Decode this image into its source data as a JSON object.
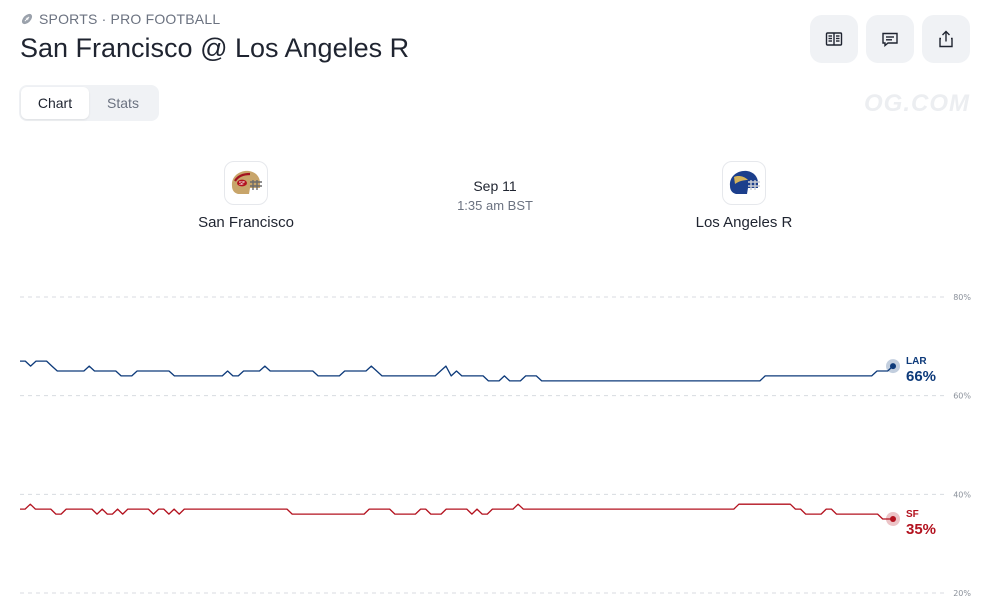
{
  "header": {
    "category": "SPORTS · PRO FOOTBALL",
    "title": "San Francisco @ Los Angeles R"
  },
  "tabs": [
    {
      "label": "Chart",
      "active": true
    },
    {
      "label": "Stats",
      "active": false
    }
  ],
  "watermark": "OG.COM",
  "actions": [
    "book-icon",
    "comment-icon",
    "share-icon"
  ],
  "matchup": {
    "home": {
      "name": "San Francisco",
      "color": "#b3121f"
    },
    "away": {
      "name": "Los Angeles R",
      "color": "#0d3a7a"
    },
    "date": "Sep 11",
    "time": "1:35 am BST"
  },
  "chart_data": {
    "type": "line",
    "ylim": [
      20,
      80
    ],
    "yticks": [
      "80%",
      "60%",
      "40%",
      "20%"
    ],
    "grid": true,
    "series": [
      {
        "name": "LAR",
        "label": "66%",
        "color": "#0d3a7a",
        "values": [
          67,
          67,
          66,
          67,
          67,
          67,
          66,
          65,
          65,
          65,
          65,
          65,
          65,
          66,
          65,
          65,
          65,
          65,
          65,
          64,
          64,
          64,
          65,
          65,
          65,
          65,
          65,
          65,
          65,
          64,
          64,
          64,
          64,
          64,
          64,
          64,
          64,
          64,
          64,
          65,
          64,
          64,
          65,
          65,
          65,
          65,
          66,
          65,
          65,
          65,
          65,
          65,
          65,
          65,
          65,
          65,
          64,
          64,
          64,
          64,
          64,
          65,
          65,
          65,
          65,
          65,
          66,
          65,
          64,
          64,
          64,
          64,
          64,
          64,
          64,
          64,
          64,
          64,
          64,
          65,
          66,
          64,
          65,
          64,
          64,
          64,
          64,
          64,
          63,
          63,
          63,
          64,
          63,
          63,
          63,
          64,
          64,
          64,
          63,
          63,
          63,
          63,
          63,
          63,
          63,
          63,
          63,
          63,
          63,
          63,
          63,
          63,
          63,
          63,
          63,
          63,
          63,
          63,
          63,
          63,
          63,
          63,
          63,
          63,
          63,
          63,
          63,
          63,
          63,
          63,
          63,
          63,
          63,
          63,
          63,
          63,
          63,
          63,
          63,
          63,
          64,
          64,
          64,
          64,
          64,
          64,
          64,
          64,
          64,
          64,
          64,
          64,
          64,
          64,
          64,
          64,
          64,
          64,
          64,
          64,
          64,
          65,
          65,
          65,
          66
        ]
      },
      {
        "name": "SF",
        "label": "35%",
        "color": "#b3121f",
        "values": [
          37,
          37,
          38,
          37,
          37,
          37,
          37,
          36,
          36,
          37,
          37,
          37,
          37,
          37,
          37,
          36,
          37,
          36,
          36,
          37,
          36,
          37,
          37,
          37,
          37,
          37,
          36,
          37,
          37,
          36,
          37,
          36,
          37,
          37,
          37,
          37,
          37,
          37,
          37,
          37,
          37,
          37,
          37,
          37,
          37,
          37,
          37,
          37,
          37,
          37,
          37,
          37,
          37,
          36,
          36,
          36,
          36,
          36,
          36,
          36,
          36,
          36,
          36,
          36,
          36,
          36,
          36,
          36,
          37,
          37,
          37,
          37,
          37,
          36,
          36,
          36,
          36,
          36,
          37,
          37,
          36,
          36,
          36,
          37,
          37,
          37,
          37,
          37,
          36,
          37,
          36,
          36,
          37,
          37,
          37,
          37,
          37,
          38,
          37,
          37,
          37,
          37,
          37,
          37,
          37,
          37,
          37,
          37,
          37,
          37,
          37,
          37,
          37,
          37,
          37,
          37,
          37,
          37,
          37,
          37,
          37,
          37,
          37,
          37,
          37,
          37,
          37,
          37,
          37,
          37,
          37,
          37,
          37,
          37,
          37,
          37,
          37,
          37,
          37,
          37,
          38,
          38,
          38,
          38,
          38,
          38,
          38,
          38,
          38,
          38,
          38,
          37,
          37,
          36,
          36,
          36,
          36,
          37,
          37,
          36,
          36,
          36,
          36,
          36,
          36,
          36,
          36,
          36,
          35,
          35,
          35
        ]
      }
    ]
  }
}
